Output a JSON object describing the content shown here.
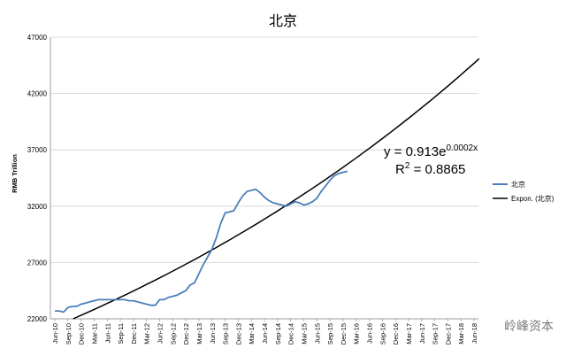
{
  "chart_data": {
    "type": "line",
    "title": "北京",
    "ylabel": "RMB Trillion",
    "xlabel": "",
    "ylim": [
      22000,
      47000
    ],
    "yticks": [
      "22000",
      "27000",
      "32000",
      "37000",
      "42000",
      "47000"
    ],
    "categories": [
      "Jun-10",
      "Sep-10",
      "Dec-10",
      "Mar-11",
      "Jun-11",
      "Sep-11",
      "Dec-11",
      "Mar-12",
      "Jun-12",
      "Sep-12",
      "Dec-12",
      "Mar-13",
      "Jun-13",
      "Sep-13",
      "Dec-13",
      "Mar-14",
      "Jun-14",
      "Sep-14",
      "Dec-14",
      "Mar-15",
      "Jun-15",
      "Sep-15",
      "Dec-15",
      "Mar-16",
      "Jun-16",
      "Sep-16",
      "Dec-16",
      "Mar-17",
      "Jun-17",
      "Sep-17",
      "Dec-17",
      "Mar-18",
      "Jun-18"
    ],
    "series": [
      {
        "name": "北京",
        "color": "#4a7ebb",
        "x": [
          0,
          0.33,
          0.67,
          1,
          1.33,
          1.67,
          2,
          2.33,
          2.67,
          3,
          3.33,
          3.67,
          4,
          4.33,
          4.67,
          5,
          5.33,
          5.67,
          6,
          6.33,
          6.67,
          7,
          7.33,
          7.67,
          8,
          8.33,
          8.67,
          9,
          9.33,
          9.67,
          10,
          10.33,
          10.67,
          11,
          11.33,
          11.67,
          12,
          12.33,
          12.67,
          13,
          13.33,
          13.67,
          14,
          14.33,
          14.67,
          15,
          15.33,
          15.67,
          16,
          16.33,
          16.67,
          17,
          17.33,
          17.67,
          18,
          18.33,
          18.67,
          19,
          19.33,
          19.67,
          20,
          20.33,
          20.67,
          21,
          21.33,
          21.67,
          22,
          22.33
        ],
        "values": [
          22700,
          22700,
          22600,
          23000,
          23100,
          23100,
          23300,
          23400,
          23500,
          23600,
          23700,
          23700,
          23700,
          23700,
          23700,
          23700,
          23700,
          23600,
          23600,
          23500,
          23400,
          23300,
          23200,
          23200,
          23700,
          23700,
          23900,
          24000,
          24100,
          24300,
          24500,
          25000,
          25200,
          26000,
          26800,
          27500,
          28200,
          29200,
          30500,
          31400,
          31500,
          31600,
          32300,
          32900,
          33300,
          33400,
          33500,
          33200,
          32800,
          32500,
          32300,
          32200,
          32100,
          32000,
          32200,
          32400,
          32300,
          32100,
          32200,
          32400,
          32700,
          33300,
          33800,
          34300,
          34700,
          34900,
          35000,
          35100
        ]
      }
    ],
    "trendline": {
      "name": "Expon. (北京)",
      "color": "#000000",
      "x_start": 1.4,
      "x_end": 32.4,
      "y_start": 22000,
      "y_end": 45100,
      "equation": "y = 0.913e",
      "exponent": "0.0002x",
      "r2_label": "R",
      "r2_sup": "2",
      "r2_value": " = 0.8865"
    },
    "legend": {
      "position": "right"
    },
    "grid": {
      "y": true,
      "x": false
    }
  },
  "watermark": "岭峰资本"
}
